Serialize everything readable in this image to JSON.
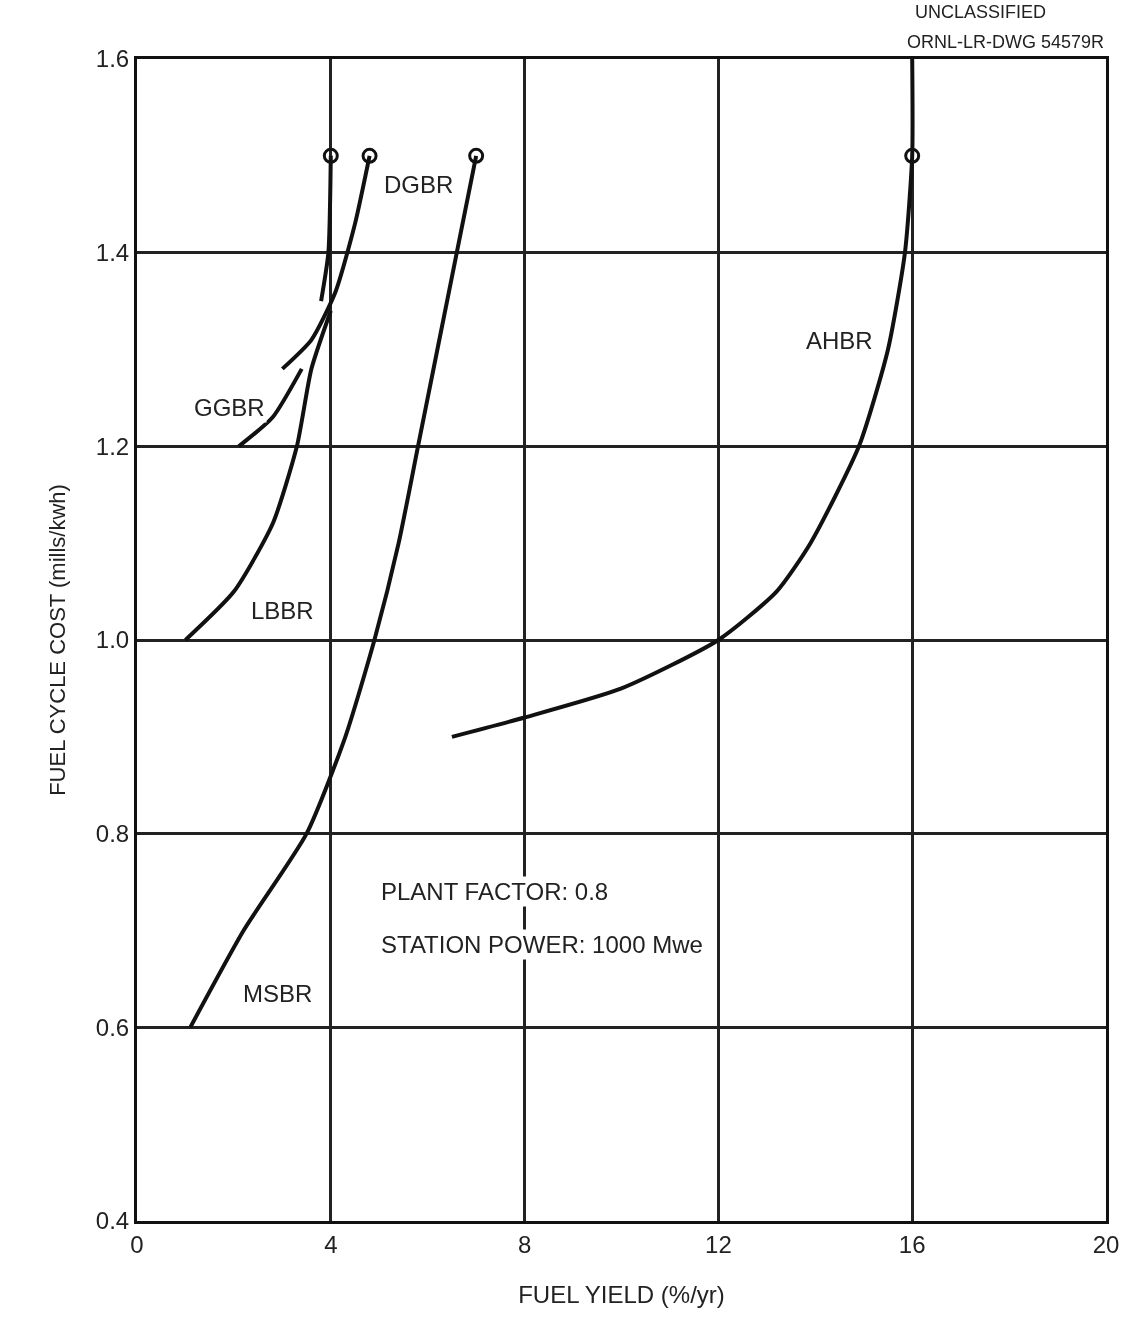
{
  "chart_data": {
    "type": "line",
    "xlabel": "FUEL YIELD (%/yr)",
    "ylabel": "FUEL CYCLE COST (mills/kwh)",
    "xlim": [
      0,
      20
    ],
    "ylim": [
      0.4,
      1.6
    ],
    "xticks": [
      0,
      4,
      8,
      12,
      16,
      20
    ],
    "yticks": [
      {
        "value": 0.4,
        "label": "0.4"
      },
      {
        "value": 0.6,
        "label": "0.6"
      },
      {
        "value": 0.8,
        "label": "0.8"
      },
      {
        "value": 1.0,
        "label": "1.0"
      },
      {
        "value": 1.2,
        "label": "1.2"
      },
      {
        "value": 1.4,
        "label": "1.4"
      },
      {
        "value": 1.6,
        "label": "1.6"
      }
    ],
    "grid": true,
    "line_style": "solid",
    "marker": "none",
    "series": [
      {
        "color": "#111111",
        "x": [
          1.1,
          2.2,
          3.5,
          4.3,
          4.9,
          5.4,
          5.8,
          6.2,
          6.6,
          7.0
        ],
        "values": [
          0.6,
          0.7,
          0.8,
          0.9,
          1.0,
          1.1,
          1.2,
          1.3,
          1.4,
          1.5
        ]
      },
      {
        "color": "#111111",
        "x": [
          6.5,
          8,
          10,
          12,
          13.2,
          13.9,
          14.9,
          15.5,
          15.85,
          16.0,
          16.0
        ],
        "values": [
          0.9,
          0.92,
          0.95,
          1.0,
          1.05,
          1.1,
          1.2,
          1.3,
          1.4,
          1.5,
          1.6
        ]
      },
      {
        "color": "#111111",
        "x": [
          4.8,
          4.5,
          4.1,
          3.6,
          3.0
        ],
        "values": [
          1.5,
          1.43,
          1.36,
          1.31,
          1.28
        ]
      },
      {
        "color": "#111111",
        "x": [
          3.4,
          2.8,
          2.1
        ],
        "values": [
          1.28,
          1.23,
          1.2
        ]
      },
      {
        "color": "#111111",
        "x": [
          1.0,
          2.0,
          2.8,
          3.3,
          3.6,
          4.0,
          null,
          3.8,
          3.95,
          4.0
        ],
        "values": [
          1.0,
          1.05,
          1.12,
          1.2,
          1.28,
          1.34,
          null,
          1.35,
          1.4,
          1.5
        ]
      },
      {
        "type": "scatter",
        "marker": "circle",
        "color": "#111111",
        "x": [
          4.0,
          4.8,
          7.0,
          16.0
        ],
        "values": [
          1.5,
          1.5,
          1.5,
          1.5
        ]
      }
    ],
    "annotations": [
      "DGBR",
      "GGBR",
      "LBBR",
      "MSBR",
      "AHBR",
      "PLANT FACTOR: 0.8",
      "STATION POWER: 1000 Mwe",
      "UNCLASSIFIED",
      "ORNL-LR-DWG 54579R"
    ]
  }
}
